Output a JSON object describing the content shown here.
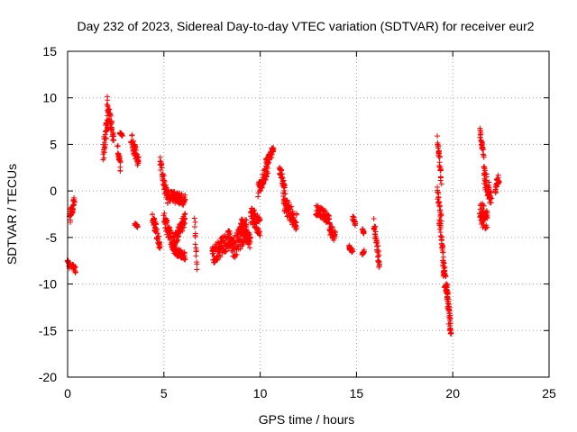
{
  "chart_data": {
    "type": "scatter",
    "title": "Day 232 of 2023, Sidereal Day-to-day VTEC variation (SDTVAR) for receiver eur2",
    "xlabel": "GPS time / hours",
    "ylabel": "SDTVAR / TECUs",
    "xlim": [
      0,
      25
    ],
    "ylim": [
      -20,
      15
    ],
    "xticks": [
      0,
      5,
      10,
      15,
      20,
      25
    ],
    "yticks": [
      -20,
      -15,
      -10,
      -5,
      0,
      5,
      10,
      15
    ],
    "grid": true,
    "marker": "+",
    "color": "#ff0000",
    "series": [
      {
        "name": "SDTVAR",
        "segments": [
          {
            "x0": 0.0,
            "x1": 0.1,
            "y0": -7.5,
            "y1": -8.2,
            "spread": 0.5
          },
          {
            "x0": 0.1,
            "x1": 0.35,
            "y0": -3.0,
            "y1": -0.8,
            "spread": 1.2
          },
          {
            "x0": 0.2,
            "x1": 0.4,
            "y0": -7.8,
            "y1": -8.5,
            "spread": 0.8
          },
          {
            "x0": 1.85,
            "x1": 2.1,
            "y0": 4.0,
            "y1": 8.0,
            "spread": 2.0
          },
          {
            "x0": 2.05,
            "x1": 2.4,
            "y0": 9.5,
            "y1": 5.5,
            "spread": 1.5
          },
          {
            "x0": 2.6,
            "x1": 2.75,
            "y0": 4.5,
            "y1": 2.5,
            "spread": 1.0
          },
          {
            "x0": 2.7,
            "x1": 2.85,
            "y0": 6.2,
            "y1": 6.0,
            "spread": 0.2
          },
          {
            "x0": 3.3,
            "x1": 3.7,
            "y0": 5.5,
            "y1": 3.0,
            "spread": 1.5
          },
          {
            "x0": 3.5,
            "x1": 3.65,
            "y0": -3.6,
            "y1": -3.8,
            "spread": 0.3
          },
          {
            "x0": 4.4,
            "x1": 4.8,
            "y0": -2.5,
            "y1": -6.0,
            "spread": 1.5
          },
          {
            "x0": 4.8,
            "x1": 5.2,
            "y0": 3.0,
            "y1": -1.0,
            "spread": 1.5
          },
          {
            "x0": 5.0,
            "x1": 5.6,
            "y0": -3.0,
            "y1": -6.5,
            "spread": 1.5
          },
          {
            "x0": 5.2,
            "x1": 6.1,
            "y0": -0.5,
            "y1": -1.0,
            "spread": 1.2
          },
          {
            "x0": 5.5,
            "x1": 6.1,
            "y0": -5.5,
            "y1": -3.0,
            "spread": 1.5
          },
          {
            "x0": 5.6,
            "x1": 6.1,
            "y0": -6.5,
            "y1": -7.0,
            "spread": 0.8
          },
          {
            "x0": 6.6,
            "x1": 6.7,
            "y0": -3.2,
            "y1": -8.2,
            "spread": 0.6
          },
          {
            "x0": 7.5,
            "x1": 8.5,
            "y0": -7.0,
            "y1": -5.0,
            "spread": 2.0
          },
          {
            "x0": 8.5,
            "x1": 9.3,
            "y0": -6.5,
            "y1": -4.0,
            "spread": 2.5
          },
          {
            "x0": 9.0,
            "x1": 9.5,
            "y0": -3.5,
            "y1": -5.5,
            "spread": 1.5
          },
          {
            "x0": 9.5,
            "x1": 10.0,
            "y0": -2.5,
            "y1": -4.0,
            "spread": 2.0
          },
          {
            "x0": 9.9,
            "x1": 10.4,
            "y0": 0.0,
            "y1": 2.5,
            "spread": 1.5
          },
          {
            "x0": 10.3,
            "x1": 10.7,
            "y0": 3.0,
            "y1": 4.5,
            "spread": 1.0
          },
          {
            "x0": 11.0,
            "x1": 11.3,
            "y0": 2.5,
            "y1": 0.0,
            "spread": 1.0
          },
          {
            "x0": 11.2,
            "x1": 11.9,
            "y0": -1.0,
            "y1": -3.5,
            "spread": 2.0
          },
          {
            "x0": 12.9,
            "x1": 13.6,
            "y0": -2.0,
            "y1": -3.0,
            "spread": 1.2
          },
          {
            "x0": 13.6,
            "x1": 13.9,
            "y0": -4.0,
            "y1": -5.0,
            "spread": 1.2
          },
          {
            "x0": 14.6,
            "x1": 14.8,
            "y0": -6.0,
            "y1": -6.5,
            "spread": 0.4
          },
          {
            "x0": 14.8,
            "x1": 14.95,
            "y0": -2.8,
            "y1": -3.5,
            "spread": 0.6
          },
          {
            "x0": 15.3,
            "x1": 15.4,
            "y0": -4.2,
            "y1": -4.5,
            "spread": 0.3
          },
          {
            "x0": 15.3,
            "x1": 15.4,
            "y0": -6.8,
            "y1": -6.5,
            "spread": 0.3
          },
          {
            "x0": 15.9,
            "x1": 16.2,
            "y0": -3.5,
            "y1": -8.0,
            "spread": 1.5
          },
          {
            "x0": 19.2,
            "x1": 19.4,
            "y0": 5.5,
            "y1": 1.5,
            "spread": 1.5
          },
          {
            "x0": 19.2,
            "x1": 19.4,
            "y0": 0.0,
            "y1": -3.0,
            "spread": 1.0
          },
          {
            "x0": 19.3,
            "x1": 19.6,
            "y0": -3.0,
            "y1": -9.0,
            "spread": 1.5
          },
          {
            "x0": 19.5,
            "x1": 19.9,
            "y0": -8.0,
            "y1": -15.0,
            "spread": 2.5
          },
          {
            "x0": 19.7,
            "x1": 19.9,
            "y0": -10.0,
            "y1": -15.3,
            "spread": 1.0
          },
          {
            "x0": 21.4,
            "x1": 21.6,
            "y0": 6.5,
            "y1": 4.0,
            "spread": 1.0
          },
          {
            "x0": 21.4,
            "x1": 21.8,
            "y0": -2.0,
            "y1": -3.5,
            "spread": 2.5
          },
          {
            "x0": 21.6,
            "x1": 22.0,
            "y0": 2.0,
            "y1": -1.0,
            "spread": 2.0
          },
          {
            "x0": 22.2,
            "x1": 22.4,
            "y0": 0.0,
            "y1": 1.5,
            "spread": 1.0
          }
        ]
      }
    ]
  }
}
